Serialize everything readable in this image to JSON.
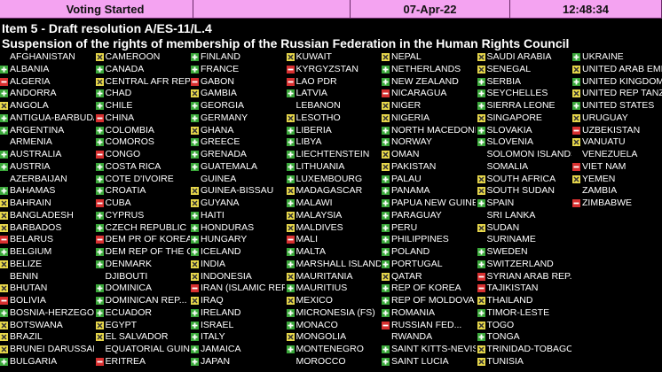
{
  "header": {
    "status": "Voting Started",
    "date": "07-Apr-22",
    "time": "12:48:34"
  },
  "item": "Item 5 - Draft resolution A/ES-11/L.4",
  "subject": "Suspension of the rights of membership of the Russian Federation in the Human Rights Council",
  "columns": [
    [
      {
        "name": "AFGHANISTAN"
      },
      {
        "name": "ALBANIA",
        "vote": "yes"
      },
      {
        "name": "ALGERIA",
        "vote": "no"
      },
      {
        "name": "ANDORRA",
        "vote": "yes"
      },
      {
        "name": "ANGOLA",
        "vote": "abstain"
      },
      {
        "name": "ANTIGUA-BARBUDA",
        "vote": "yes"
      },
      {
        "name": "ARGENTINA",
        "vote": "yes"
      },
      {
        "name": "ARMENIA"
      },
      {
        "name": "AUSTRALIA",
        "vote": "yes"
      },
      {
        "name": "AUSTRIA",
        "vote": "yes"
      },
      {
        "name": "AZERBAIJAN"
      },
      {
        "name": "BAHAMAS",
        "vote": "yes"
      },
      {
        "name": "BAHRAIN",
        "vote": "abstain"
      },
      {
        "name": "BANGLADESH",
        "vote": "abstain"
      },
      {
        "name": "BARBADOS",
        "vote": "abstain"
      },
      {
        "name": "BELARUS",
        "vote": "no"
      },
      {
        "name": "BELGIUM",
        "vote": "yes"
      },
      {
        "name": "BELIZE",
        "vote": "abstain"
      },
      {
        "name": "BENIN"
      },
      {
        "name": "BHUTAN",
        "vote": "abstain"
      },
      {
        "name": "BOLIVIA",
        "vote": "no"
      },
      {
        "name": "BOSNIA-HERZEGOVI...",
        "vote": "yes"
      },
      {
        "name": "BOTSWANA",
        "vote": "abstain"
      },
      {
        "name": "BRAZIL",
        "vote": "abstain"
      },
      {
        "name": "BRUNEI DARUSSAL...",
        "vote": "abstain"
      },
      {
        "name": "BULGARIA",
        "vote": "yes"
      }
    ],
    [
      {
        "name": "CAMEROON",
        "vote": "abstain"
      },
      {
        "name": "CANADA",
        "vote": "yes"
      },
      {
        "name": "CENTRAL AFR REP....",
        "vote": "abstain"
      },
      {
        "name": "CHAD",
        "vote": "yes"
      },
      {
        "name": "CHILE",
        "vote": "yes"
      },
      {
        "name": "CHINA",
        "vote": "no"
      },
      {
        "name": "COLOMBIA",
        "vote": "yes"
      },
      {
        "name": "COMOROS",
        "vote": "yes"
      },
      {
        "name": "CONGO",
        "vote": "no"
      },
      {
        "name": "COSTA RICA",
        "vote": "yes"
      },
      {
        "name": "COTE D'IVOIRE",
        "vote": "yes"
      },
      {
        "name": "CROATIA",
        "vote": "yes"
      },
      {
        "name": "CUBA",
        "vote": "no"
      },
      {
        "name": "CYPRUS",
        "vote": "yes"
      },
      {
        "name": "CZECH REPUBLIC",
        "vote": "yes"
      },
      {
        "name": "DEM PR OF KOREA",
        "vote": "no"
      },
      {
        "name": "DEM REP OF THE C...",
        "vote": "yes"
      },
      {
        "name": "DENMARK",
        "vote": "yes"
      },
      {
        "name": "DJIBOUTI"
      },
      {
        "name": "DOMINICA",
        "vote": "yes"
      },
      {
        "name": "DOMINICAN REP...",
        "vote": "yes"
      },
      {
        "name": "ECUADOR",
        "vote": "yes"
      },
      {
        "name": "EGYPT",
        "vote": "abstain"
      },
      {
        "name": "EL SALVADOR",
        "vote": "abstain"
      },
      {
        "name": "EQUATORIAL GUINEA"
      },
      {
        "name": "ERITREA",
        "vote": "no"
      }
    ],
    [
      {
        "name": "FINLAND",
        "vote": "yes"
      },
      {
        "name": "FRANCE",
        "vote": "yes"
      },
      {
        "name": "GABON",
        "vote": "no"
      },
      {
        "name": "GAMBIA",
        "vote": "abstain"
      },
      {
        "name": "GEORGIA",
        "vote": "yes"
      },
      {
        "name": "GERMANY",
        "vote": "yes"
      },
      {
        "name": "GHANA",
        "vote": "abstain"
      },
      {
        "name": "GREECE",
        "vote": "yes"
      },
      {
        "name": "GRENADA",
        "vote": "yes"
      },
      {
        "name": "GUATEMALA",
        "vote": "yes"
      },
      {
        "name": "GUINEA"
      },
      {
        "name": "GUINEA-BISSAU",
        "vote": "abstain"
      },
      {
        "name": "GUYANA",
        "vote": "abstain"
      },
      {
        "name": "HAITI",
        "vote": "yes"
      },
      {
        "name": "HONDURAS",
        "vote": "yes"
      },
      {
        "name": "HUNGARY",
        "vote": "yes"
      },
      {
        "name": "ICELAND",
        "vote": "yes"
      },
      {
        "name": "INDIA",
        "vote": "abstain"
      },
      {
        "name": "INDONESIA",
        "vote": "abstain"
      },
      {
        "name": "IRAN (ISLAMIC REP...",
        "vote": "no"
      },
      {
        "name": "IRAQ",
        "vote": "abstain"
      },
      {
        "name": "IRELAND",
        "vote": "yes"
      },
      {
        "name": "ISRAEL",
        "vote": "yes"
      },
      {
        "name": "ITALY",
        "vote": "yes"
      },
      {
        "name": "JAMAICA",
        "vote": "yes"
      },
      {
        "name": "JAPAN",
        "vote": "yes"
      }
    ],
    [
      {
        "name": "KUWAIT",
        "vote": "abstain"
      },
      {
        "name": "KYRGYZSTAN",
        "vote": "no"
      },
      {
        "name": "LAO PDR",
        "vote": "no"
      },
      {
        "name": "LATVIA",
        "vote": "yes"
      },
      {
        "name": "LEBANON"
      },
      {
        "name": "LESOTHO",
        "vote": "abstain"
      },
      {
        "name": "LIBERIA",
        "vote": "yes"
      },
      {
        "name": "LIBYA",
        "vote": "yes"
      },
      {
        "name": "LIECHTENSTEIN",
        "vote": "yes"
      },
      {
        "name": "LITHUANIA",
        "vote": "yes"
      },
      {
        "name": "LUXEMBOURG",
        "vote": "yes"
      },
      {
        "name": "MADAGASCAR",
        "vote": "abstain"
      },
      {
        "name": "MALAWI",
        "vote": "yes"
      },
      {
        "name": "MALAYSIA",
        "vote": "abstain"
      },
      {
        "name": "MALDIVES",
        "vote": "abstain"
      },
      {
        "name": "MALI",
        "vote": "no"
      },
      {
        "name": "MALTA",
        "vote": "yes"
      },
      {
        "name": "MARSHALL ISLANDS",
        "vote": "yes"
      },
      {
        "name": "MAURITANIA",
        "vote": "abstain"
      },
      {
        "name": "MAURITIUS",
        "vote": "yes"
      },
      {
        "name": "MEXICO",
        "vote": "abstain"
      },
      {
        "name": "MICRONESIA (FS)",
        "vote": "yes"
      },
      {
        "name": "MONACO",
        "vote": "yes"
      },
      {
        "name": "MONGOLIA",
        "vote": "abstain"
      },
      {
        "name": "MONTENEGRO",
        "vote": "yes"
      },
      {
        "name": "MOROCCO"
      }
    ],
    [
      {
        "name": "NEPAL",
        "vote": "abstain"
      },
      {
        "name": "NETHERLANDS",
        "vote": "yes"
      },
      {
        "name": "NEW ZEALAND",
        "vote": "yes"
      },
      {
        "name": "NICARAGUA",
        "vote": "no"
      },
      {
        "name": "NIGER",
        "vote": "abstain"
      },
      {
        "name": "NIGERIA",
        "vote": "abstain"
      },
      {
        "name": "NORTH MACEDONIA",
        "vote": "yes"
      },
      {
        "name": "NORWAY",
        "vote": "yes"
      },
      {
        "name": "OMAN",
        "vote": "abstain"
      },
      {
        "name": "PAKISTAN",
        "vote": "abstain"
      },
      {
        "name": "PALAU",
        "vote": "yes"
      },
      {
        "name": "PANAMA",
        "vote": "yes"
      },
      {
        "name": "PAPUA NEW GUINEA",
        "vote": "yes"
      },
      {
        "name": "PARAGUAY",
        "vote": "yes"
      },
      {
        "name": "PERU",
        "vote": "yes"
      },
      {
        "name": "PHILIPPINES",
        "vote": "yes"
      },
      {
        "name": "POLAND",
        "vote": "yes"
      },
      {
        "name": "PORTUGAL",
        "vote": "yes"
      },
      {
        "name": "QATAR",
        "vote": "abstain"
      },
      {
        "name": "REP OF KOREA",
        "vote": "yes"
      },
      {
        "name": "REP OF MOLDOVA",
        "vote": "yes"
      },
      {
        "name": "ROMANIA",
        "vote": "yes"
      },
      {
        "name": "RUSSIAN FED...",
        "vote": "no"
      },
      {
        "name": "RWANDA"
      },
      {
        "name": "SAINT KITTS-NEVIS",
        "vote": "yes"
      },
      {
        "name": "SAINT LUCIA",
        "vote": "yes"
      }
    ],
    [
      {
        "name": "SAUDI ARABIA",
        "vote": "abstain"
      },
      {
        "name": "SENEGAL",
        "vote": "abstain"
      },
      {
        "name": "SERBIA",
        "vote": "yes"
      },
      {
        "name": "SEYCHELLES",
        "vote": "yes"
      },
      {
        "name": "SIERRA LEONE",
        "vote": "yes"
      },
      {
        "name": "SINGAPORE",
        "vote": "abstain"
      },
      {
        "name": "SLOVAKIA",
        "vote": "yes"
      },
      {
        "name": "SLOVENIA",
        "vote": "yes"
      },
      {
        "name": "SOLOMON ISLANDS"
      },
      {
        "name": "SOMALIA"
      },
      {
        "name": "SOUTH AFRICA",
        "vote": "abstain"
      },
      {
        "name": "SOUTH SUDAN",
        "vote": "abstain"
      },
      {
        "name": "SPAIN",
        "vote": "yes"
      },
      {
        "name": "SRI LANKA"
      },
      {
        "name": "SUDAN",
        "vote": "abstain"
      },
      {
        "name": "SURINAME"
      },
      {
        "name": "SWEDEN",
        "vote": "yes"
      },
      {
        "name": "SWITZERLAND",
        "vote": "yes"
      },
      {
        "name": "SYRIAN ARAB REP...",
        "vote": "no"
      },
      {
        "name": "TAJIKISTAN",
        "vote": "no"
      },
      {
        "name": "THAILAND",
        "vote": "abstain"
      },
      {
        "name": "TIMOR-LESTE",
        "vote": "yes"
      },
      {
        "name": "TOGO",
        "vote": "abstain"
      },
      {
        "name": "TONGA",
        "vote": "yes"
      },
      {
        "name": "TRINIDAD-TOBAGO",
        "vote": "abstain"
      },
      {
        "name": "TUNISIA",
        "vote": "abstain"
      }
    ],
    [
      {
        "name": "UKRAINE",
        "vote": "yes"
      },
      {
        "name": "UNITED ARAB EMIR...",
        "vote": "abstain"
      },
      {
        "name": "UNITED KINGDOM",
        "vote": "yes"
      },
      {
        "name": "UNITED REP TANZA...",
        "vote": "abstain"
      },
      {
        "name": "UNITED STATES",
        "vote": "yes"
      },
      {
        "name": "URUGUAY",
        "vote": "abstain"
      },
      {
        "name": "UZBEKISTAN",
        "vote": "no"
      },
      {
        "name": "VANUATU",
        "vote": "abstain"
      },
      {
        "name": "VENEZUELA"
      },
      {
        "name": "VIET NAM",
        "vote": "no"
      },
      {
        "name": "YEMEN",
        "vote": "abstain"
      },
      {
        "name": "ZAMBIA"
      },
      {
        "name": "ZIMBABWE",
        "vote": "no"
      }
    ]
  ]
}
